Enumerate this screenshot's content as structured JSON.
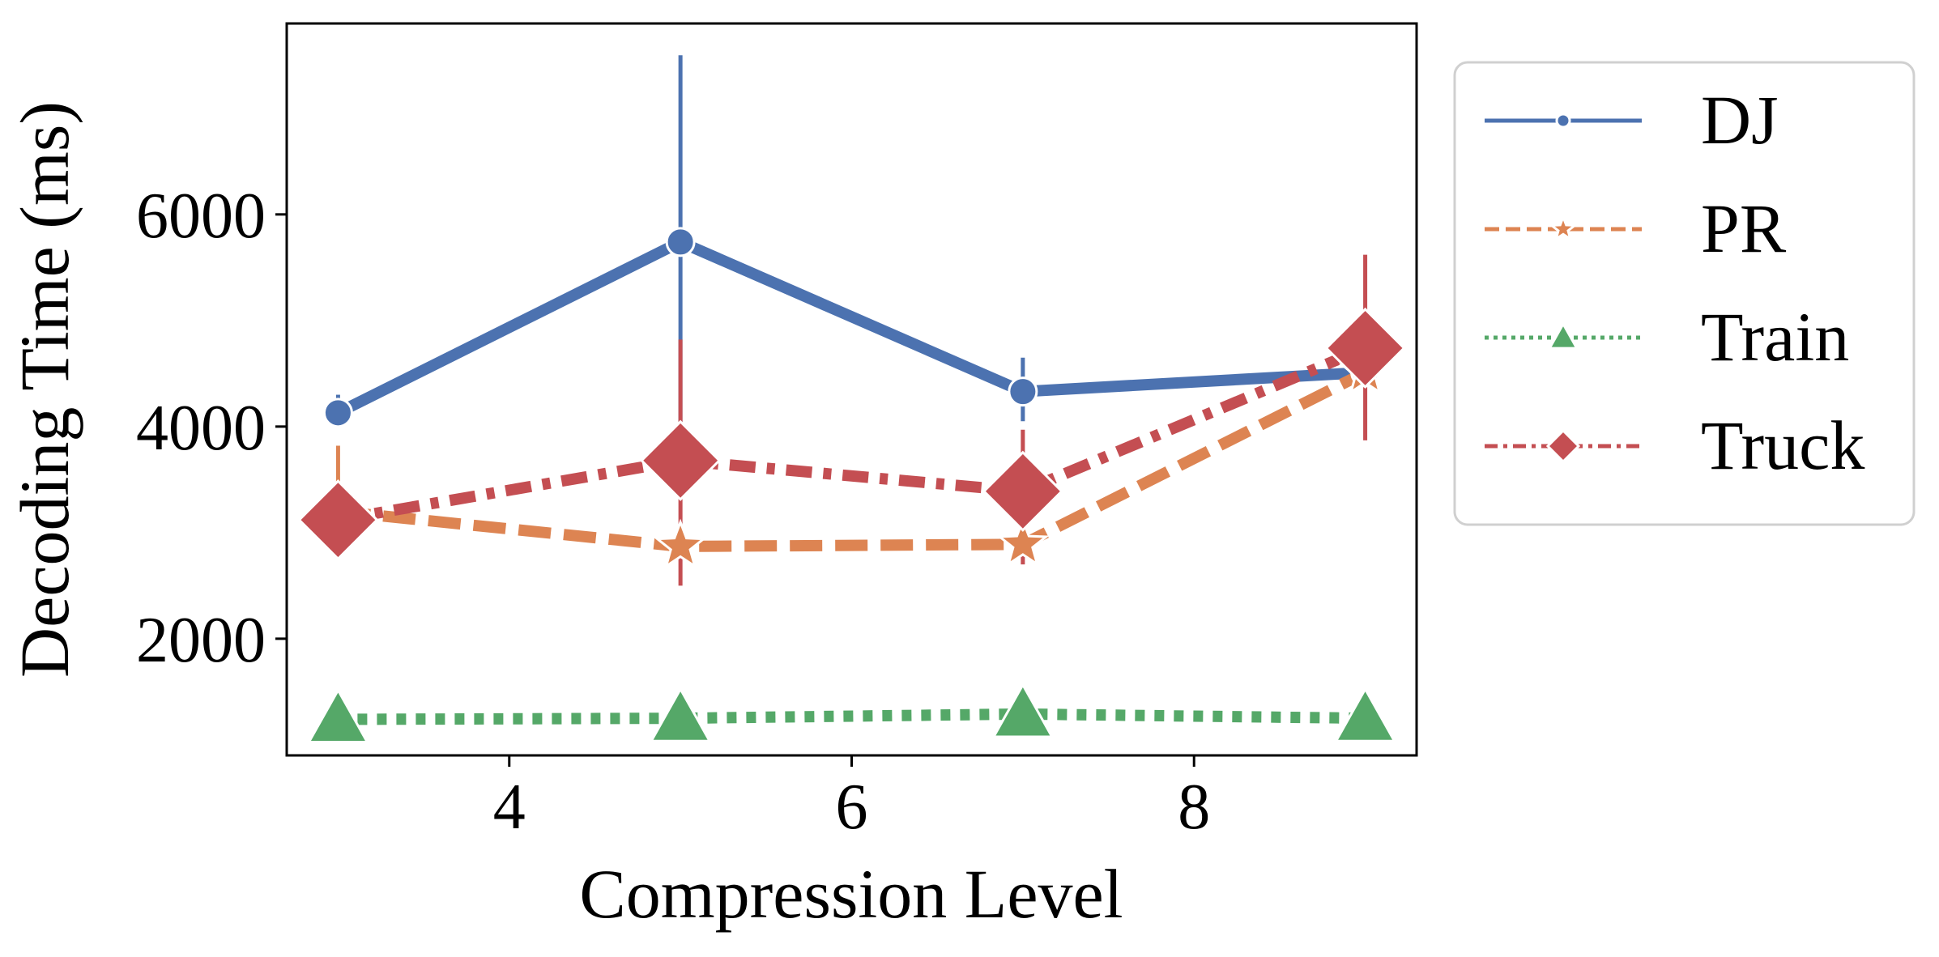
{
  "chart_data": {
    "type": "line",
    "xlabel": "Compression Level",
    "ylabel": "Decoding Time (ms)",
    "xlim": [
      2.7,
      9.3
    ],
    "ylim": [
      900,
      7800
    ],
    "xticks": [
      4,
      6,
      8
    ],
    "yticks": [
      2000,
      4000,
      6000
    ],
    "grid": false,
    "legend_position": "outside-right",
    "x": [
      3,
      5,
      7,
      9
    ],
    "series": [
      {
        "name": "DJ",
        "color": "#4c72b0",
        "marker": "circle",
        "linestyle": "solid",
        "values": [
          4130,
          5740,
          4330,
          4510
        ],
        "error_low": [
          4030,
          3400,
          4050,
          4430
        ],
        "error_high": [
          4300,
          7500,
          4650,
          4590
        ]
      },
      {
        "name": "PR",
        "color": "#dd8452",
        "marker": "star",
        "linestyle": "dashed",
        "values": [
          3200,
          2870,
          2890,
          4510
        ],
        "error_low": [
          3100,
          2800,
          2820,
          4430
        ],
        "error_high": [
          3820,
          2950,
          2960,
          4590
        ]
      },
      {
        "name": "Train",
        "color": "#55a868",
        "marker": "triangle",
        "linestyle": "dotted",
        "values": [
          1240,
          1250,
          1290,
          1250
        ],
        "error_low": [
          1200,
          1210,
          1250,
          1210
        ],
        "error_high": [
          1280,
          1290,
          1330,
          1290
        ]
      },
      {
        "name": "Truck",
        "color": "#c44e52",
        "marker": "diamond",
        "linestyle": "dashdot",
        "values": [
          3120,
          3680,
          3390,
          4740
        ],
        "error_low": [
          3050,
          2500,
          2700,
          3870
        ],
        "error_high": [
          3200,
          4820,
          3970,
          5620
        ]
      }
    ]
  }
}
